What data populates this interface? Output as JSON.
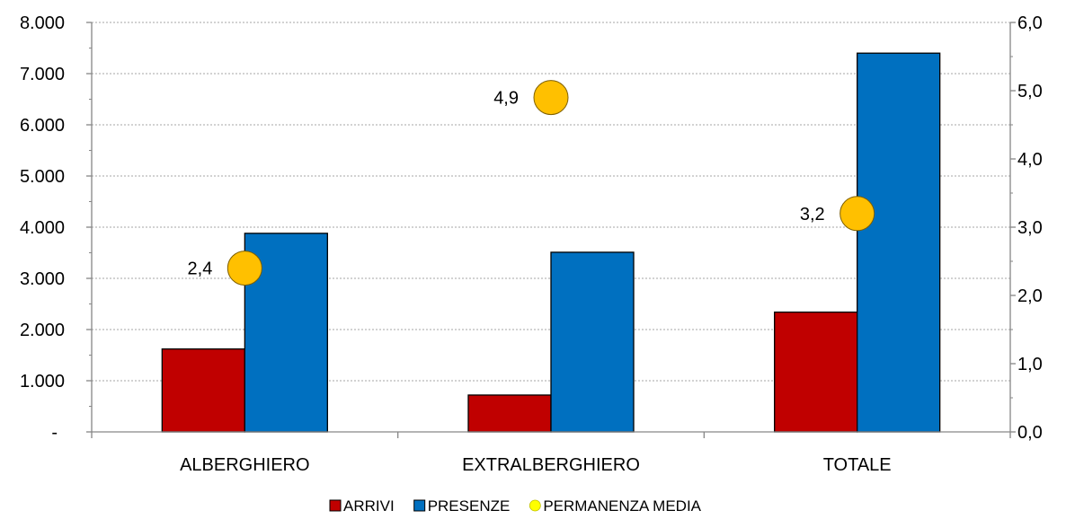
{
  "chart_data": {
    "type": "bar",
    "categories": [
      "ALBERGHIERO",
      "EXTRALBERGHIERO",
      "TOTALE"
    ],
    "series": [
      {
        "name": "ARRIVI",
        "axis": "left",
        "kind": "bar",
        "color": "#C00000",
        "values": [
          1620,
          720,
          2340
        ]
      },
      {
        "name": "PRESENZE",
        "axis": "left",
        "kind": "bar",
        "color": "#0070C0",
        "values": [
          3880,
          3510,
          7400
        ]
      },
      {
        "name": "PERMANENZA MEDIA",
        "axis": "right",
        "kind": "marker",
        "color": "#FFC000",
        "legend_color": "#FFFF00",
        "values": [
          2.4,
          4.9,
          3.2
        ],
        "labels": [
          "2,4",
          "4,9",
          "3,2"
        ]
      }
    ],
    "y_left": {
      "min": 0,
      "max": 8000,
      "ticks": [
        0,
        1000,
        2000,
        3000,
        4000,
        5000,
        6000,
        7000,
        8000
      ],
      "tick_labels": [
        "-",
        "1.000",
        "2.000",
        "3.000",
        "4.000",
        "5.000",
        "6.000",
        "7.000",
        "8.000"
      ]
    },
    "y_right": {
      "min": 0,
      "max": 6,
      "ticks": [
        0,
        1,
        2,
        3,
        4,
        5,
        6
      ],
      "tick_labels": [
        "0,0",
        "1,0",
        "2,0",
        "3,0",
        "4,0",
        "5,0",
        "6,0"
      ]
    },
    "grid": true,
    "legend_position": "bottom",
    "title": "",
    "xlabel": "",
    "ylabel": ""
  }
}
